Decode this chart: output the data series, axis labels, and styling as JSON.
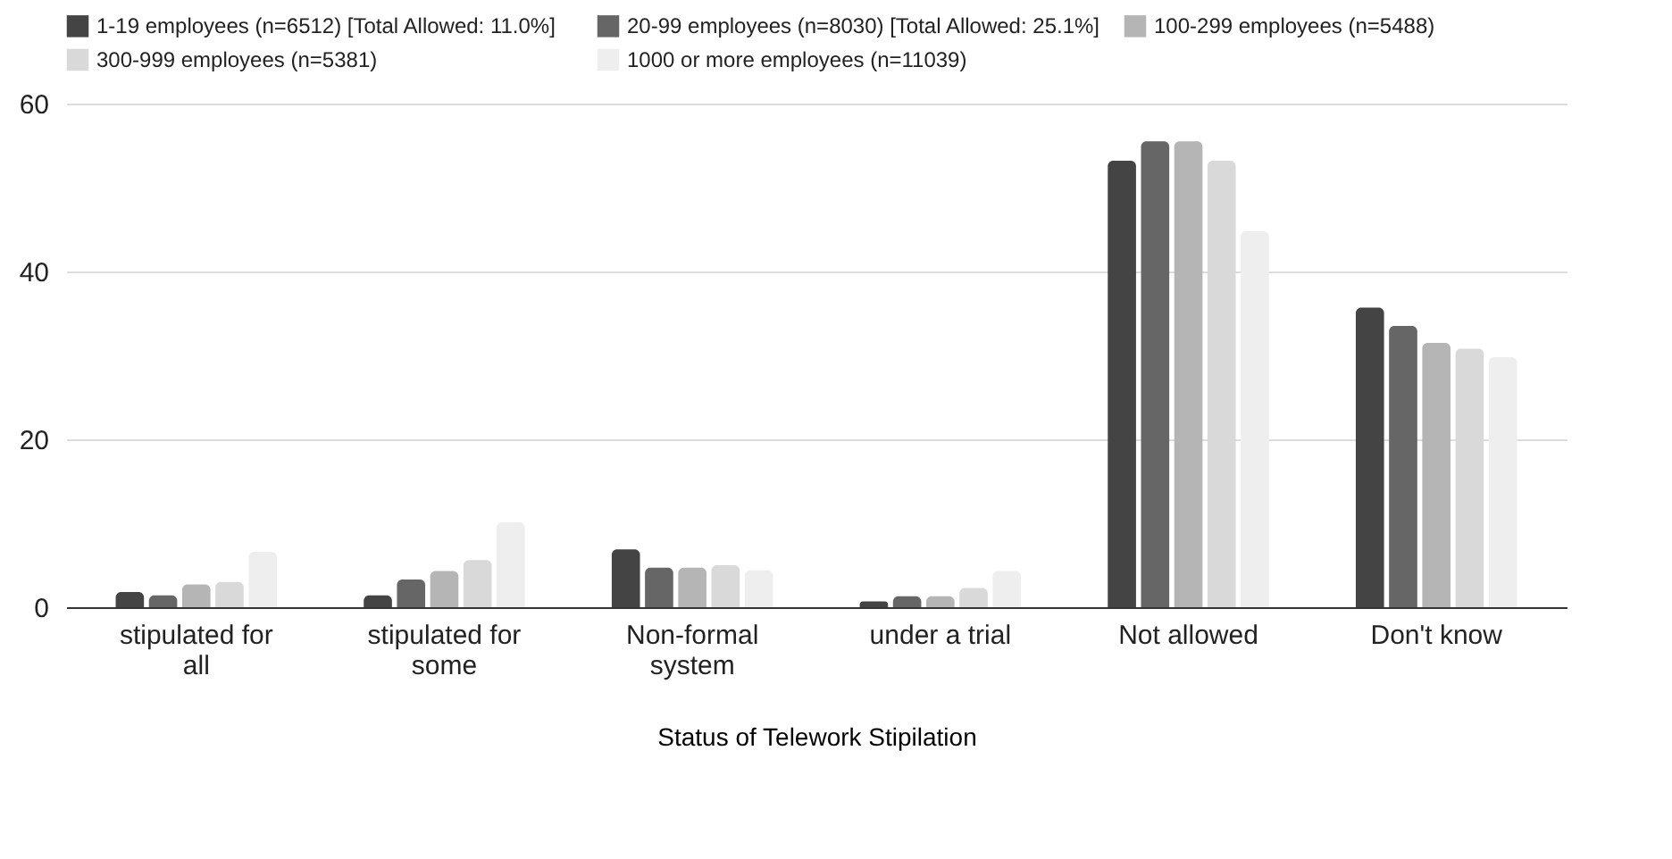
{
  "chart_data": {
    "type": "bar",
    "xlabel": "Status of Telework Stipilation",
    "categories": [
      "stipulated for all",
      "stipulated for some",
      "Non-formal system",
      "under a trial",
      "Not allowed",
      "Don't know"
    ],
    "series": [
      {
        "name": "1-19 employees (n=6512)    [Total Allowed: 11.0%]",
        "color": "#444444",
        "values": [
          1.8,
          1.4,
          6.9,
          0.7,
          53.2,
          35.7
        ]
      },
      {
        "name": "20-99 employees (n=8030) [Total Allowed: 25.1%]",
        "color": "#666666",
        "values": [
          1.4,
          3.3,
          4.7,
          1.3,
          55.5,
          33.5
        ]
      },
      {
        "name": "100-299 employees (n=5488)",
        "color": "#b5b5b5",
        "values": [
          2.7,
          4.3,
          4.7,
          1.3,
          55.5,
          31.5
        ]
      },
      {
        "name": "300-999 employees (n=5381)",
        "color": "#d9d9d9",
        "values": [
          3.0,
          5.6,
          5.0,
          2.3,
          53.2,
          30.8
        ]
      },
      {
        "name": "1000 or more employees (n=11039)",
        "color": "#eeeeee",
        "values": [
          6.6,
          10.1,
          4.4,
          4.3,
          44.8,
          29.8
        ]
      }
    ],
    "ylim": [
      0,
      60
    ],
    "yticks": [
      0,
      20,
      40,
      60
    ],
    "grid": "y",
    "legend": "top"
  }
}
